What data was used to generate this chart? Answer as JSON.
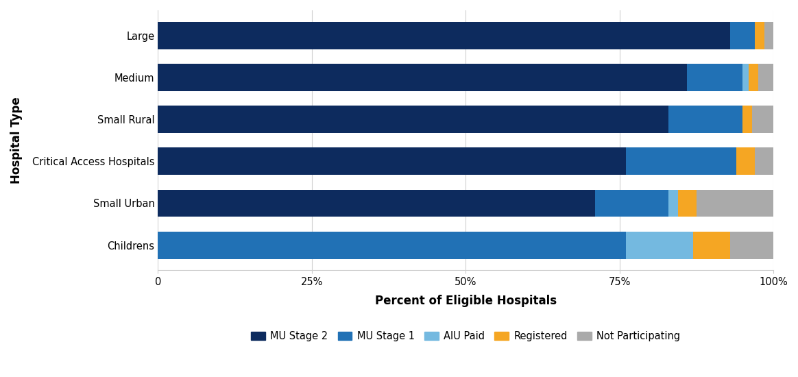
{
  "categories": [
    "Large",
    "Medium",
    "Small Rural",
    "Critical Access Hospitals",
    "Small Urban",
    "Childrens"
  ],
  "segments": {
    "MU Stage 2": [
      93,
      86,
      83,
      76,
      71,
      0
    ],
    "MU Stage 1": [
      4,
      9,
      12,
      18,
      12,
      76
    ],
    "AIU Paid": [
      0,
      1,
      0,
      0,
      1.5,
      11
    ],
    "Registered": [
      1.5,
      1.5,
      1.5,
      3,
      3,
      6
    ],
    "Not Participating": [
      1.5,
      2.5,
      3.5,
      3,
      12.5,
      7
    ]
  },
  "colors": {
    "MU Stage 2": "#0d2b5e",
    "MU Stage 1": "#2171b5",
    "AIU Paid": "#74b9e0",
    "Registered": "#f5a623",
    "Not Participating": "#aaaaaa"
  },
  "xlabel": "Percent of Eligible Hospitals",
  "ylabel": "Hospital Type",
  "xlim": [
    0,
    100
  ],
  "xticks": [
    0,
    25,
    50,
    75,
    100
  ],
  "xticklabels": [
    "0",
    "25%",
    "50%",
    "75%",
    "100%"
  ],
  "background_color": "#ffffff",
  "grid_color": "#d0d0d0",
  "bar_height": 0.65
}
